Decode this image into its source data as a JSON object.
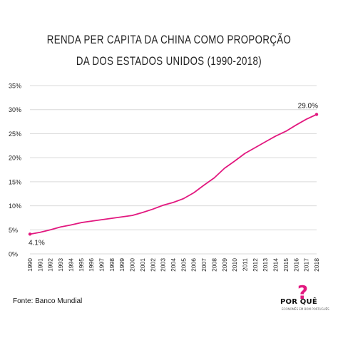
{
  "title_line1": "RENDA PER CAPITA DA CHINA COMO PROPORÇÃO",
  "title_line2": "DA DOS ESTADOS UNIDOS (1990-2018)",
  "source": "Fonte: Banco Mundial",
  "logo": {
    "mark": "?",
    "name": "POR QUÊ",
    "tagline": "ECONOMÊS EM BOM PORTUGUÊS"
  },
  "colors": {
    "line": "#e2187f",
    "grid": "#d9d9d9",
    "text": "#222222"
  },
  "chart_data": {
    "type": "line",
    "title": "RENDA PER CAPITA DA CHINA COMO PROPORÇÃO DA DOS ESTADOS UNIDOS (1990-2018)",
    "xlabel": "",
    "ylabel": "",
    "ylim": [
      0,
      35
    ],
    "yticks": [
      "0%",
      "5%",
      "10%",
      "15%",
      "20%",
      "25%",
      "30%",
      "35%"
    ],
    "grid": true,
    "categories": [
      "1990",
      "1991",
      "1992",
      "1993",
      "1994",
      "1995",
      "1996",
      "1997",
      "1998",
      "1999",
      "2000",
      "2001",
      "2002",
      "2003",
      "2004",
      "2005",
      "2006",
      "2007",
      "2008",
      "2009",
      "2010",
      "2011",
      "2012",
      "2013",
      "2014",
      "2015",
      "2016",
      "2017",
      "2018"
    ],
    "values": [
      4.1,
      4.5,
      5.0,
      5.6,
      6.0,
      6.5,
      6.8,
      7.1,
      7.4,
      7.7,
      8.0,
      8.6,
      9.3,
      10.1,
      10.7,
      11.5,
      12.7,
      14.3,
      15.8,
      17.8,
      19.3,
      20.9,
      22.1,
      23.3,
      24.5,
      25.5,
      26.8,
      28.0,
      29.0
    ],
    "annotations": [
      {
        "x": "1990",
        "label": "4.1%"
      },
      {
        "x": "2018",
        "label": "29.0%"
      }
    ]
  }
}
